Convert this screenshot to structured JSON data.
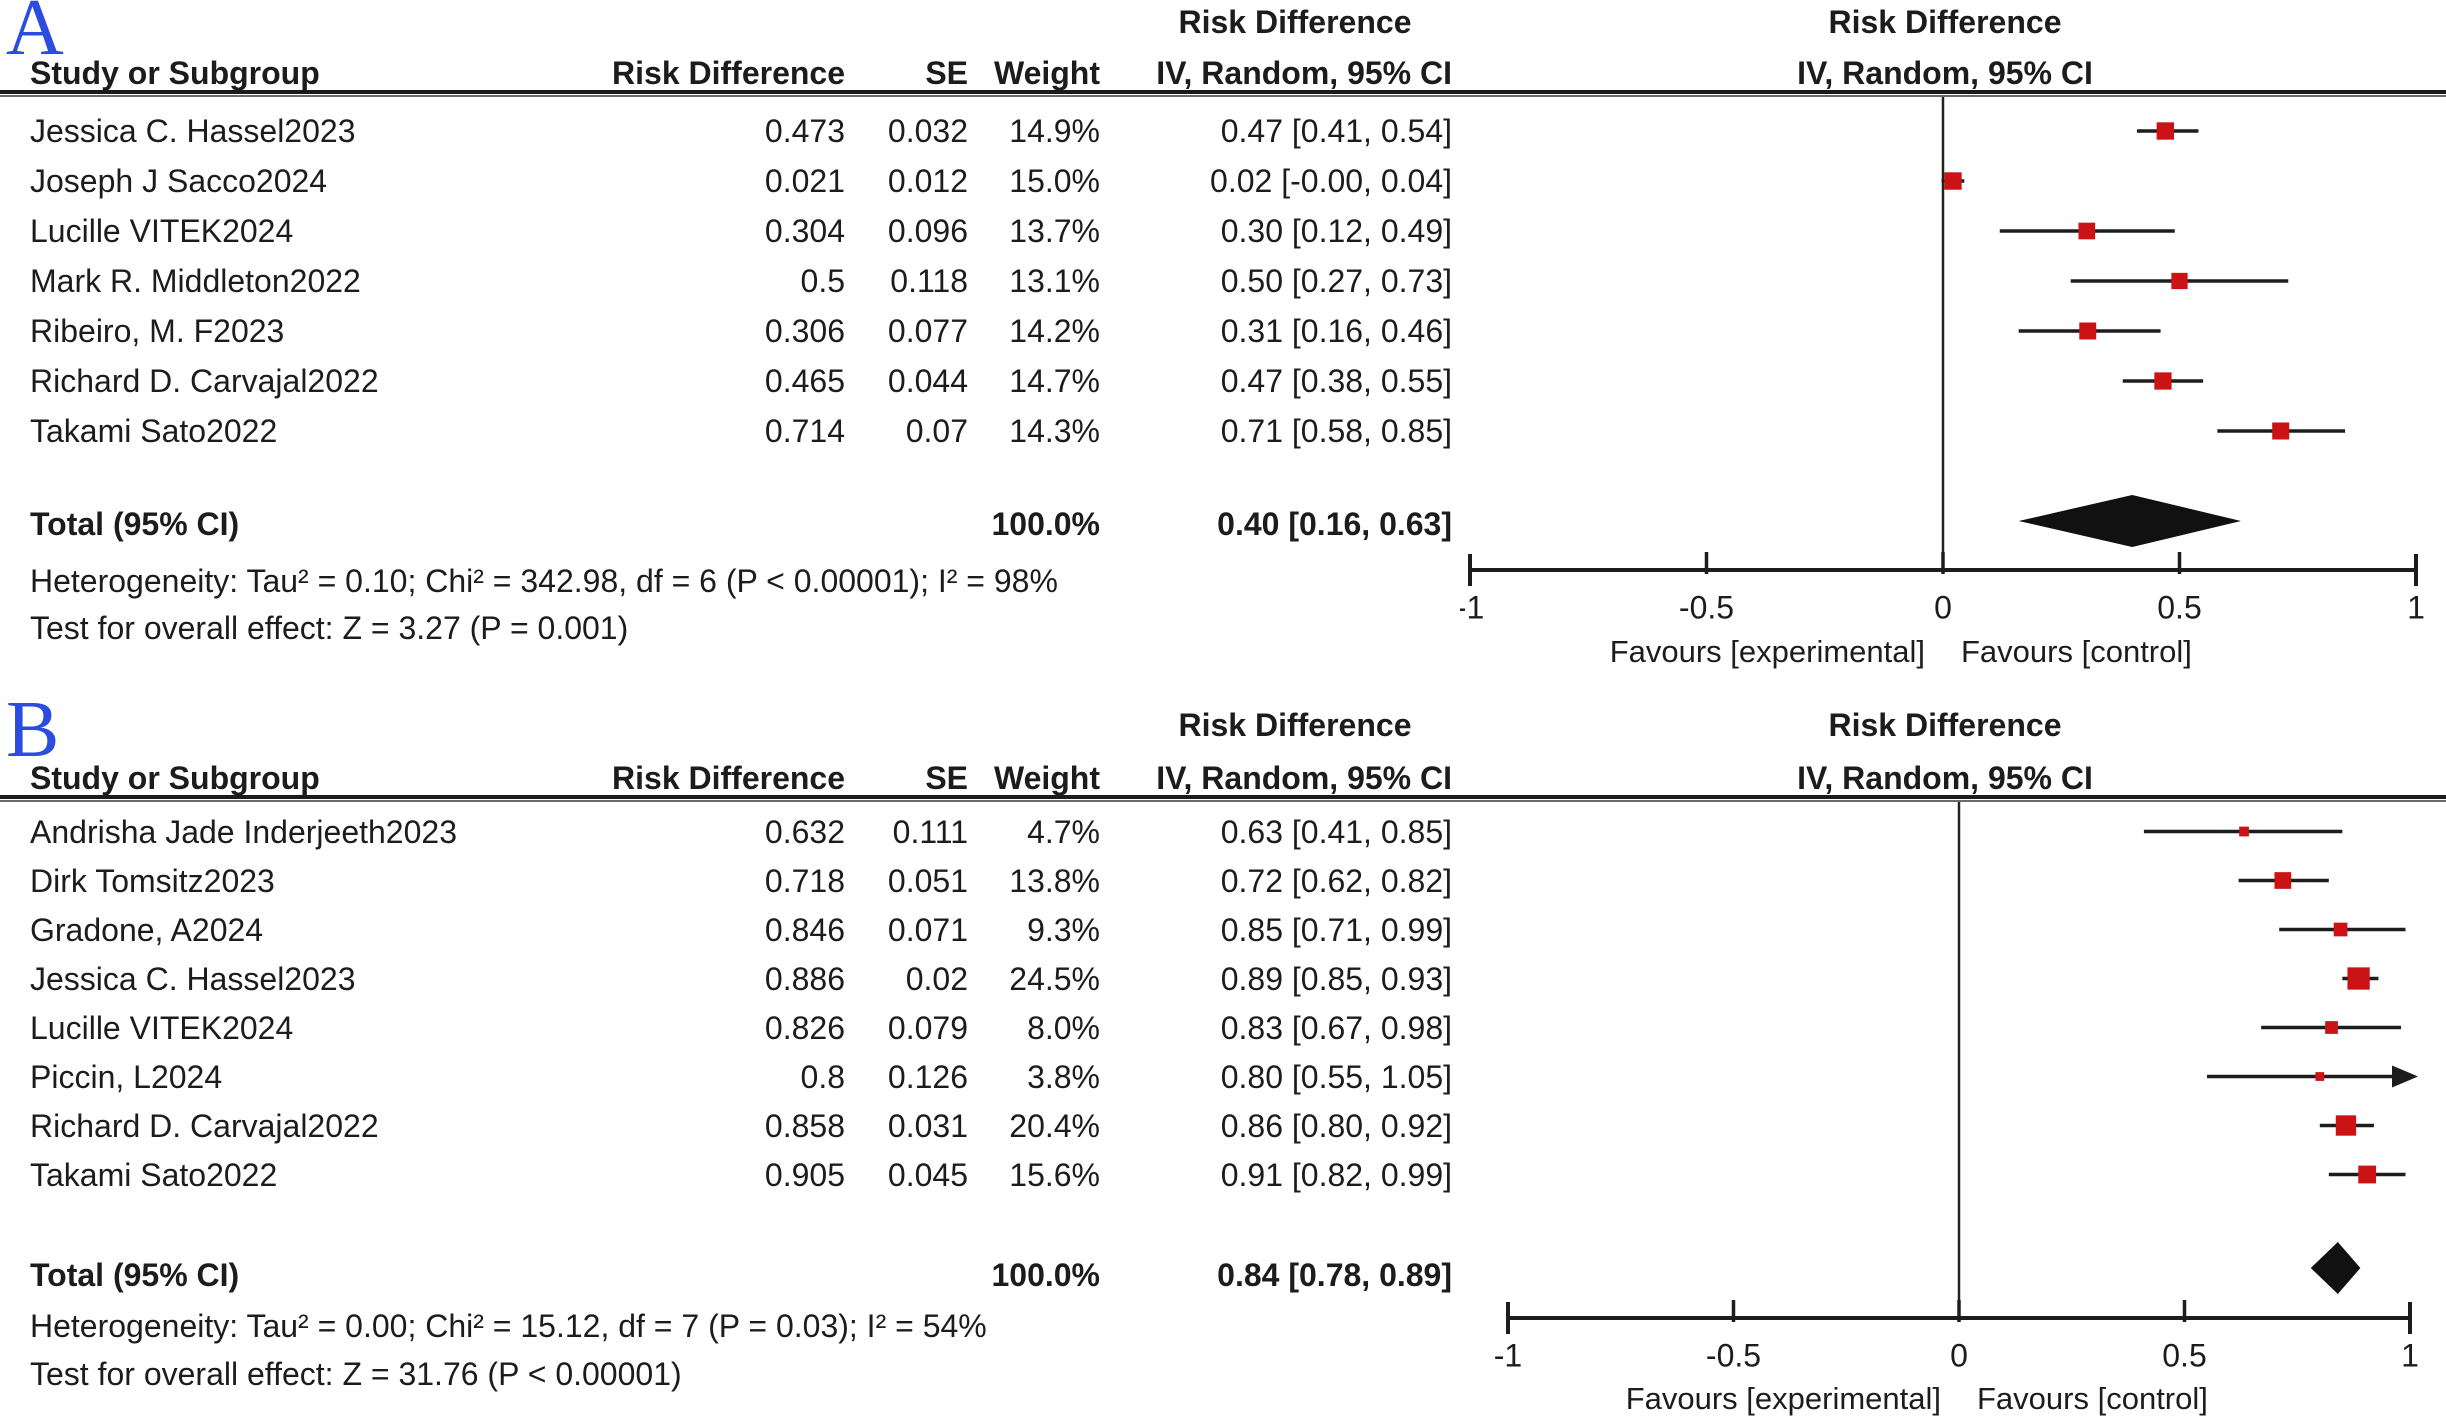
{
  "figure": {
    "background": "#ffffff",
    "text_color": "#1c1c1c",
    "marker_red": "#CB1316",
    "summary_black": "#111111",
    "panel_label_blue": "#2b4ce0"
  },
  "chart_data": [
    {
      "panel_label": "A",
      "type": "forest_plot",
      "effect_measure_title": "Risk Difference",
      "method_title": "IV, Random, 95% CI",
      "columns": [
        "Study or Subgroup",
        "Risk Difference",
        "SE",
        "Weight",
        "IV, Random, 95% CI"
      ],
      "studies": [
        {
          "name": "Jessica C. Hassel2023",
          "effect": "0.473",
          "se": "0.032",
          "weight": "14.9%",
          "weight_val": 14.9,
          "ci_text": "0.47 [0.41, 0.54]",
          "est": 0.47,
          "lo": 0.41,
          "hi": 0.54
        },
        {
          "name": "Joseph J Sacco2024",
          "effect": "0.021",
          "se": "0.012",
          "weight": "15.0%",
          "weight_val": 15.0,
          "ci_text": "0.02 [-0.00, 0.04]",
          "est": 0.021,
          "lo": -0.003,
          "hi": 0.045
        },
        {
          "name": "Lucille VITEK2024",
          "effect": "0.304",
          "se": "0.096",
          "weight": "13.7%",
          "weight_val": 13.7,
          "ci_text": "0.30 [0.12, 0.49]",
          "est": 0.304,
          "lo": 0.12,
          "hi": 0.49
        },
        {
          "name": "Mark R. Middleton2022",
          "effect": "0.5",
          "se": "0.118",
          "weight": "13.1%",
          "weight_val": 13.1,
          "ci_text": "0.50 [0.27, 0.73]",
          "est": 0.5,
          "lo": 0.27,
          "hi": 0.73
        },
        {
          "name": "Ribeiro, M. F2023",
          "effect": "0.306",
          "se": "0.077",
          "weight": "14.2%",
          "weight_val": 14.2,
          "ci_text": "0.31 [0.16, 0.46]",
          "est": 0.306,
          "lo": 0.16,
          "hi": 0.46
        },
        {
          "name": "Richard D. Carvajal2022",
          "effect": "0.465",
          "se": "0.044",
          "weight": "14.7%",
          "weight_val": 14.7,
          "ci_text": "0.47 [0.38, 0.55]",
          "est": 0.465,
          "lo": 0.38,
          "hi": 0.55
        },
        {
          "name": "Takami Sato2022",
          "effect": "0.714",
          "se": "0.07",
          "weight": "14.3%",
          "weight_val": 14.3,
          "ci_text": "0.71 [0.58, 0.85]",
          "est": 0.714,
          "lo": 0.58,
          "hi": 0.85
        }
      ],
      "total": {
        "label": "Total (95% CI)",
        "weight": "100.0%",
        "ci_text": "0.40 [0.16, 0.63]",
        "est": 0.4,
        "lo": 0.16,
        "hi": 0.63
      },
      "heterogeneity": "Heterogeneity: Tau² = 0.10; Chi² = 342.98, df = 6 (P < 0.00001); I² = 98%",
      "overall_effect": "Test for overall effect: Z = 3.27 (P = 0.001)",
      "axis": {
        "min": -1,
        "max": 1,
        "ticks": [
          -1,
          -0.5,
          0,
          0.5,
          1
        ],
        "tick_labels": [
          "-1",
          "-0.5",
          "0",
          "0.5",
          "1"
        ],
        "favours_left": "Favours [experimental]",
        "favours_right": "Favours [control]"
      }
    },
    {
      "panel_label": "B",
      "type": "forest_plot",
      "effect_measure_title": "Risk Difference",
      "method_title": "IV, Random, 95% CI",
      "columns": [
        "Study or Subgroup",
        "Risk Difference",
        "SE",
        "Weight",
        "IV, Random, 95% CI"
      ],
      "studies": [
        {
          "name": "Andrisha Jade Inderjeeth2023",
          "effect": "0.632",
          "se": "0.111",
          "weight": "4.7%",
          "weight_val": 4.7,
          "ci_text": "0.63 [0.41, 0.85]",
          "est": 0.632,
          "lo": 0.41,
          "hi": 0.85
        },
        {
          "name": "Dirk Tomsitz2023",
          "effect": "0.718",
          "se": "0.051",
          "weight": "13.8%",
          "weight_val": 13.8,
          "ci_text": "0.72 [0.62, 0.82]",
          "est": 0.718,
          "lo": 0.62,
          "hi": 0.82
        },
        {
          "name": "Gradone, A2024",
          "effect": "0.846",
          "se": "0.071",
          "weight": "9.3%",
          "weight_val": 9.3,
          "ci_text": "0.85 [0.71, 0.99]",
          "est": 0.846,
          "lo": 0.71,
          "hi": 0.99
        },
        {
          "name": "Jessica C. Hassel2023",
          "effect": "0.886",
          "se": "0.02",
          "weight": "24.5%",
          "weight_val": 24.5,
          "ci_text": "0.89 [0.85, 0.93]",
          "est": 0.886,
          "lo": 0.85,
          "hi": 0.93
        },
        {
          "name": "Lucille VITEK2024",
          "effect": "0.826",
          "se": "0.079",
          "weight": "8.0%",
          "weight_val": 8.0,
          "ci_text": "0.83 [0.67, 0.98]",
          "est": 0.826,
          "lo": 0.67,
          "hi": 0.98
        },
        {
          "name": "Piccin, L2024",
          "effect": "0.8",
          "se": "0.126",
          "weight": "3.8%",
          "weight_val": 3.8,
          "ci_text": "0.80 [0.55, 1.05]",
          "est": 0.8,
          "lo": 0.55,
          "hi": 1.05
        },
        {
          "name": "Richard D. Carvajal2022",
          "effect": "0.858",
          "se": "0.031",
          "weight": "20.4%",
          "weight_val": 20.4,
          "ci_text": "0.86 [0.80, 0.92]",
          "est": 0.858,
          "lo": 0.8,
          "hi": 0.92
        },
        {
          "name": "Takami Sato2022",
          "effect": "0.905",
          "se": "0.045",
          "weight": "15.6%",
          "weight_val": 15.6,
          "ci_text": "0.91 [0.82, 0.99]",
          "est": 0.905,
          "lo": 0.82,
          "hi": 0.99
        }
      ],
      "total": {
        "label": "Total (95% CI)",
        "weight": "100.0%",
        "ci_text": "0.84 [0.78, 0.89]",
        "est": 0.84,
        "lo": 0.78,
        "hi": 0.89
      },
      "heterogeneity": "Heterogeneity: Tau² = 0.00; Chi² = 15.12, df = 7 (P = 0.03); I² = 54%",
      "overall_effect": "Test for overall effect: Z = 31.76 (P < 0.00001)",
      "axis": {
        "min": -1,
        "max": 1,
        "ticks": [
          -1,
          -0.5,
          0,
          0.5,
          1
        ],
        "tick_labels": [
          "-1",
          "-0.5",
          "0",
          "0.5",
          "1"
        ],
        "favours_left": "Favours [experimental]",
        "favours_right": "Favours [control]"
      }
    }
  ]
}
